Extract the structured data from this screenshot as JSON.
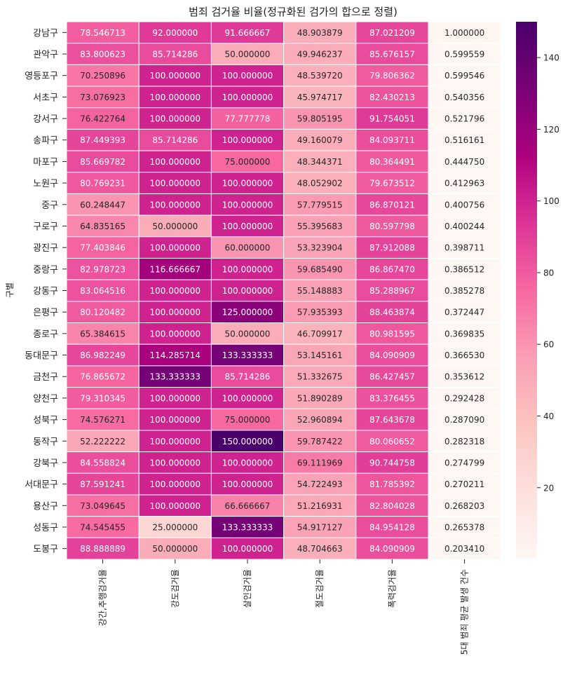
{
  "chart_data": {
    "type": "heatmap",
    "title": "범죄 검거율 비율(정규화된 검가의 합으로 정렬)",
    "ylabel": "구별",
    "xlabel": "",
    "columns": [
      "강간,추행검거율",
      "강도검거율",
      "살인검거율",
      "절도검거율",
      "폭력검거율",
      "5대 범죄 평균 발생 건수"
    ],
    "rows": [
      "강남구",
      "관악구",
      "영등포구",
      "서초구",
      "강서구",
      "송파구",
      "마포구",
      "노원구",
      "중구",
      "구로구",
      "광진구",
      "중랑구",
      "강동구",
      "은평구",
      "종로구",
      "동대문구",
      "금천구",
      "양천구",
      "성북구",
      "동작구",
      "강북구",
      "서대문구",
      "용산구",
      "성동구",
      "도봉구"
    ],
    "values": [
      [
        78.546713,
        92.0,
        91.666667,
        48.903879,
        87.021209,
        1.0
      ],
      [
        83.800623,
        85.714286,
        50.0,
        49.946237,
        85.676157,
        0.599559
      ],
      [
        70.250896,
        100.0,
        100.0,
        48.53972,
        79.806362,
        0.599546
      ],
      [
        73.076923,
        100.0,
        100.0,
        45.974717,
        82.430213,
        0.540356
      ],
      [
        76.422764,
        100.0,
        77.777778,
        59.805195,
        91.754051,
        0.521796
      ],
      [
        87.449393,
        85.714286,
        100.0,
        49.160079,
        84.093711,
        0.516161
      ],
      [
        85.669782,
        100.0,
        75.0,
        48.344371,
        80.364491,
        0.44475
      ],
      [
        80.769231,
        100.0,
        100.0,
        48.052902,
        79.673512,
        0.412963
      ],
      [
        60.248447,
        100.0,
        100.0,
        57.779515,
        86.870121,
        0.400756
      ],
      [
        64.835165,
        50.0,
        100.0,
        55.395683,
        80.597798,
        0.400244
      ],
      [
        77.403846,
        100.0,
        60.0,
        53.323904,
        87.912088,
        0.398711
      ],
      [
        82.978723,
        116.666667,
        100.0,
        59.68549,
        86.86747,
        0.386512
      ],
      [
        83.064516,
        100.0,
        100.0,
        55.148883,
        85.288967,
        0.385278
      ],
      [
        80.120482,
        100.0,
        125.0,
        57.935393,
        88.463874,
        0.372447
      ],
      [
        65.384615,
        100.0,
        50.0,
        46.709917,
        80.981595,
        0.369835
      ],
      [
        86.982249,
        114.285714,
        133.333333,
        53.145161,
        84.090909,
        0.36653
      ],
      [
        76.865672,
        133.333333,
        85.714286,
        51.332675,
        86.427457,
        0.353612
      ],
      [
        79.310345,
        100.0,
        100.0,
        51.890289,
        83.376455,
        0.292428
      ],
      [
        74.576271,
        100.0,
        75.0,
        52.960894,
        87.643678,
        0.28709
      ],
      [
        52.222222,
        100.0,
        150.0,
        59.787422,
        80.060652,
        0.282318
      ],
      [
        84.558824,
        100.0,
        100.0,
        69.111969,
        90.744758,
        0.274799
      ],
      [
        87.591241,
        100.0,
        100.0,
        54.722493,
        81.785392,
        0.270211
      ],
      [
        73.049645,
        100.0,
        66.666667,
        51.216931,
        82.804028,
        0.268203
      ],
      [
        74.545455,
        25.0,
        133.333333,
        54.917127,
        84.954128,
        0.265378
      ],
      [
        88.888889,
        50.0,
        100.0,
        48.704663,
        84.090909,
        0.20341
      ]
    ],
    "value_format": "6 decimals",
    "color_scale": {
      "colormap": "RdPu",
      "vmin": 0.20341,
      "vmax": 150.0,
      "stops": [
        "#fff7f3",
        "#fde0dd",
        "#fcc5c0",
        "#fa9fb5",
        "#f768a1",
        "#dd3497",
        "#ae017e",
        "#7a0177",
        "#49006a"
      ]
    },
    "colorbar_ticks": [
      20,
      40,
      60,
      80,
      100,
      120,
      140
    ],
    "grid": false
  }
}
